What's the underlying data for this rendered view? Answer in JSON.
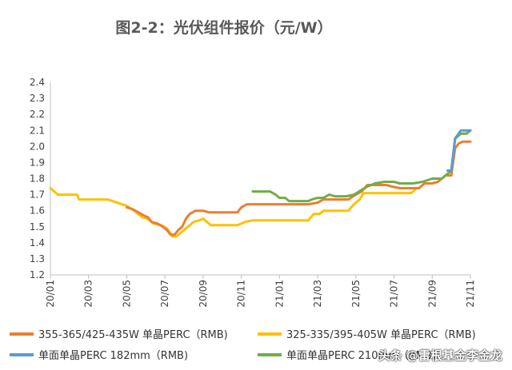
{
  "chart_data": {
    "type": "line",
    "title": "图2-2：光伏组件报价（元/W）",
    "ylim": [
      1.2,
      2.4
    ],
    "yticks": [
      "1.2",
      "1.3",
      "1.4",
      "1.5",
      "1.6",
      "1.7",
      "1.8",
      "1.9",
      "2.0",
      "2.1",
      "2.2",
      "2.3",
      "2.4"
    ],
    "xticks": [
      "20/01",
      "20/03",
      "20/05",
      "20/07",
      "20/09",
      "20/11",
      "21/01",
      "21/03",
      "21/05",
      "21/07",
      "21/09",
      "21/11"
    ],
    "legend_position": "bottom",
    "series": [
      {
        "name": "355-365/425-435W 单晶PERC（RMB)",
        "color": "#ED7D31",
        "points": [
          [
            4.0,
            1.62
          ],
          [
            4.3,
            1.61
          ],
          [
            4.6,
            1.59
          ],
          [
            4.9,
            1.57
          ],
          [
            5.1,
            1.56
          ],
          [
            5.3,
            1.53
          ],
          [
            5.6,
            1.52
          ],
          [
            5.9,
            1.5
          ],
          [
            6.1,
            1.48
          ],
          [
            6.3,
            1.45
          ],
          [
            6.5,
            1.45
          ],
          [
            6.7,
            1.48
          ],
          [
            6.9,
            1.5
          ],
          [
            7.1,
            1.55
          ],
          [
            7.3,
            1.58
          ],
          [
            7.6,
            1.6
          ],
          [
            8.0,
            1.6
          ],
          [
            8.3,
            1.59
          ],
          [
            9.0,
            1.59
          ],
          [
            9.8,
            1.59
          ],
          [
            10.0,
            1.62
          ],
          [
            10.3,
            1.64
          ],
          [
            11.0,
            1.64
          ],
          [
            12.0,
            1.64
          ],
          [
            13.0,
            1.64
          ],
          [
            13.5,
            1.64
          ],
          [
            14.0,
            1.65
          ],
          [
            14.3,
            1.67
          ],
          [
            15.0,
            1.67
          ],
          [
            15.6,
            1.67
          ],
          [
            16.0,
            1.7
          ],
          [
            16.3,
            1.72
          ],
          [
            16.6,
            1.76
          ],
          [
            17.0,
            1.76
          ],
          [
            17.6,
            1.76
          ],
          [
            17.9,
            1.75
          ],
          [
            18.3,
            1.74
          ],
          [
            19.3,
            1.74
          ],
          [
            19.6,
            1.77
          ],
          [
            20.0,
            1.77
          ],
          [
            20.3,
            1.78
          ],
          [
            20.7,
            1.82
          ],
          [
            21.0,
            1.82
          ],
          [
            21.2,
            1.99
          ],
          [
            21.4,
            2.02
          ],
          [
            21.6,
            2.03
          ],
          [
            22.0,
            2.03
          ]
        ]
      },
      {
        "name": "325-335/395-405W 单晶PERC（RMB)",
        "color": "#FFC000",
        "points": [
          [
            0.0,
            1.74
          ],
          [
            0.4,
            1.7
          ],
          [
            0.8,
            1.7
          ],
          [
            1.4,
            1.7
          ],
          [
            1.5,
            1.67
          ],
          [
            2.0,
            1.67
          ],
          [
            2.5,
            1.67
          ],
          [
            3.0,
            1.67
          ],
          [
            3.5,
            1.65
          ],
          [
            4.0,
            1.63
          ],
          [
            4.4,
            1.6
          ],
          [
            4.8,
            1.56
          ],
          [
            5.1,
            1.55
          ],
          [
            5.4,
            1.52
          ],
          [
            5.8,
            1.51
          ],
          [
            6.1,
            1.49
          ],
          [
            6.4,
            1.44
          ],
          [
            6.6,
            1.44
          ],
          [
            6.9,
            1.47
          ],
          [
            7.2,
            1.5
          ],
          [
            7.5,
            1.53
          ],
          [
            7.8,
            1.54
          ],
          [
            8.0,
            1.55
          ],
          [
            8.4,
            1.51
          ],
          [
            9.0,
            1.51
          ],
          [
            9.8,
            1.51
          ],
          [
            10.2,
            1.53
          ],
          [
            10.6,
            1.54
          ],
          [
            12.0,
            1.54
          ],
          [
            13.0,
            1.54
          ],
          [
            13.5,
            1.54
          ],
          [
            13.8,
            1.58
          ],
          [
            14.1,
            1.58
          ],
          [
            14.3,
            1.6
          ],
          [
            15.0,
            1.6
          ],
          [
            15.6,
            1.6
          ],
          [
            15.9,
            1.64
          ],
          [
            16.2,
            1.67
          ],
          [
            16.4,
            1.71
          ],
          [
            17.0,
            1.71
          ],
          [
            18.0,
            1.71
          ],
          [
            18.9,
            1.71
          ],
          [
            19.1,
            1.73
          ]
        ]
      },
      {
        "name": "单面单晶PERC 182mm（RMB)",
        "color": "#5B9BD5",
        "points": [
          [
            20.8,
            1.85
          ],
          [
            21.0,
            1.85
          ],
          [
            21.2,
            2.05
          ],
          [
            21.5,
            2.1
          ],
          [
            22.0,
            2.1
          ]
        ]
      },
      {
        "name": "单面单晶PERC 210mm（RMB)",
        "color": "#70AD47",
        "points": [
          [
            10.6,
            1.72
          ],
          [
            11.0,
            1.72
          ],
          [
            11.5,
            1.72
          ],
          [
            11.8,
            1.7
          ],
          [
            12.0,
            1.68
          ],
          [
            12.3,
            1.68
          ],
          [
            12.5,
            1.66
          ],
          [
            13.0,
            1.66
          ],
          [
            13.5,
            1.66
          ],
          [
            13.7,
            1.67
          ],
          [
            14.0,
            1.68
          ],
          [
            14.3,
            1.68
          ],
          [
            14.6,
            1.7
          ],
          [
            14.9,
            1.69
          ],
          [
            15.5,
            1.69
          ],
          [
            15.9,
            1.7
          ],
          [
            16.3,
            1.73
          ],
          [
            16.6,
            1.75
          ],
          [
            17.0,
            1.77
          ],
          [
            17.5,
            1.78
          ],
          [
            18.0,
            1.78
          ],
          [
            18.3,
            1.77
          ],
          [
            19.0,
            1.77
          ],
          [
            19.5,
            1.78
          ],
          [
            20.0,
            1.8
          ],
          [
            20.5,
            1.8
          ],
          [
            20.8,
            1.83
          ],
          [
            21.0,
            1.85
          ],
          [
            21.2,
            2.05
          ],
          [
            21.5,
            2.08
          ],
          [
            21.8,
            2.08
          ],
          [
            22.0,
            2.1
          ]
        ]
      }
    ]
  },
  "watermark": "头条 @雷根基金李金龙"
}
